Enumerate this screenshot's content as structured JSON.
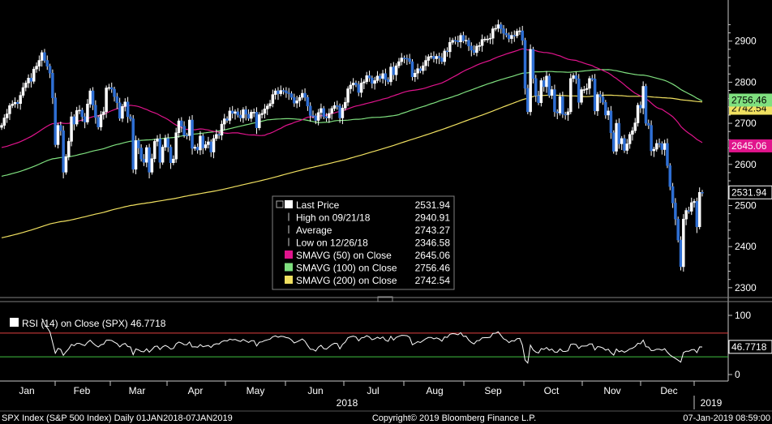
{
  "chart_data": [
    {
      "type": "candlestick",
      "title": "",
      "y_axis_ticks": [
        "2900",
        "2800",
        "2700",
        "2600",
        "2500",
        "2400",
        "2300"
      ],
      "ylim": [
        2280,
        3000
      ],
      "month_labels": [
        "Jan",
        "Feb",
        "Mar",
        "Apr",
        "May",
        "Jun",
        "Jul",
        "Aug",
        "Sep",
        "Oct",
        "Nov",
        "Dec"
      ],
      "year_labels": [
        "2018",
        "2019"
      ],
      "price_closes": [
        2695,
        2713,
        2723,
        2743,
        2747,
        2751,
        2748,
        2768,
        2787,
        2798,
        2810,
        2802,
        2832,
        2839,
        2853,
        2872,
        2853,
        2839,
        2822,
        2762,
        2648,
        2695,
        2682,
        2581,
        2619,
        2656,
        2716,
        2698,
        2731,
        2732,
        2716,
        2703,
        2747,
        2779,
        2744,
        2714,
        2691,
        2721,
        2728,
        2786,
        2787,
        2783,
        2765,
        2750,
        2712,
        2741,
        2752,
        2716,
        2711,
        2588,
        2658,
        2640,
        2613,
        2605,
        2641,
        2581,
        2614,
        2656,
        2662,
        2605,
        2642,
        2663,
        2642,
        2604,
        2613,
        2677,
        2706,
        2693,
        2671,
        2670,
        2708,
        2639,
        2642,
        2635,
        2669,
        2640,
        2648,
        2655,
        2630,
        2663,
        2673,
        2671,
        2698,
        2711,
        2707,
        2730,
        2724,
        2728,
        2720,
        2713,
        2733,
        2722,
        2712,
        2727,
        2727,
        2689,
        2721,
        2724,
        2735,
        2742,
        2748,
        2770,
        2779,
        2772,
        2780,
        2779,
        2774,
        2772,
        2763,
        2749,
        2755,
        2763,
        2773,
        2763,
        2742,
        2719,
        2718,
        2707,
        2726,
        2736,
        2716,
        2713,
        2724,
        2736,
        2743,
        2742,
        2713,
        2737,
        2751,
        2784,
        2793,
        2798,
        2794,
        2775,
        2798,
        2801,
        2816,
        2810,
        2797,
        2804,
        2815,
        2809,
        2821,
        2806,
        2801,
        2837,
        2818,
        2840,
        2850,
        2859,
        2858,
        2857,
        2850,
        2813,
        2822,
        2833,
        2828,
        2840,
        2853,
        2862,
        2863,
        2857,
        2863,
        2859,
        2850,
        2876,
        2874,
        2897,
        2902,
        2901,
        2898,
        2914,
        2901,
        2902,
        2888,
        2878,
        2872,
        2888,
        2889,
        2904,
        2905,
        2905,
        2907,
        2930,
        2931,
        2940,
        2930,
        2919,
        2915,
        2906,
        2914,
        2913,
        2924,
        2925,
        2902,
        2785,
        2728,
        2880,
        2809,
        2767,
        2750,
        2804,
        2789,
        2815,
        2768,
        2782,
        2728,
        2725,
        2765,
        2722,
        2721,
        2728,
        2809,
        2816,
        2808,
        2751,
        2782,
        2782,
        2785,
        2809,
        2808,
        2730,
        2770,
        2764,
        2751,
        2720,
        2730,
        2677,
        2632,
        2700,
        2650,
        2663,
        2634,
        2650,
        2673,
        2682,
        2701,
        2744,
        2737,
        2790,
        2700,
        2695,
        2633,
        2637,
        2651,
        2650,
        2636,
        2651,
        2597,
        2546,
        2506,
        2467,
        2416,
        2351,
        2467,
        2488,
        2486,
        2507,
        2510,
        2448,
        2532,
        2531
      ],
      "series": [
        {
          "name": "Last Price",
          "value": "2531.94",
          "color": "#2f6fd4"
        },
        {
          "name": "High on 09/21/18",
          "value": "2940.91"
        },
        {
          "name": "Average",
          "value": "2743.27"
        },
        {
          "name": "Low on 12/26/18",
          "value": "2346.58"
        },
        {
          "name": "SMAVG (50)  on Close",
          "value": "2645.06",
          "color": "#e0148c"
        },
        {
          "name": "SMAVG (100)  on Close",
          "value": "2756.46",
          "color": "#7fe07f"
        },
        {
          "name": "SMAVG (200)  on Close",
          "value": "2742.54",
          "color": "#f0e060"
        }
      ],
      "right_labels": [
        "2756.46",
        "2645.06",
        "2531.94"
      ]
    },
    {
      "type": "line",
      "title": "RSI (14)  on Close (SPX) 46.7718",
      "y_axis_ticks": [
        "100",
        "50",
        "0"
      ],
      "ylim": [
        0,
        100
      ],
      "reference_lines": [
        70,
        30
      ],
      "current_value": "46.7718"
    }
  ],
  "footer": {
    "left": "SPX Index (S&P 500 Index)  Daily 01JAN2018-07JAN2019",
    "center": "Copyright© 2019 Bloomberg Finance L.P.",
    "right": "07-Jan-2019 08:59:00"
  },
  "colors": {
    "background": "#000000",
    "candle": "#2f6fd4",
    "sma50": "#e0148c",
    "sma100": "#7fe07f",
    "sma200": "#f0e060",
    "rsi_upper": "#e04040",
    "rsi_lower": "#40c040"
  }
}
